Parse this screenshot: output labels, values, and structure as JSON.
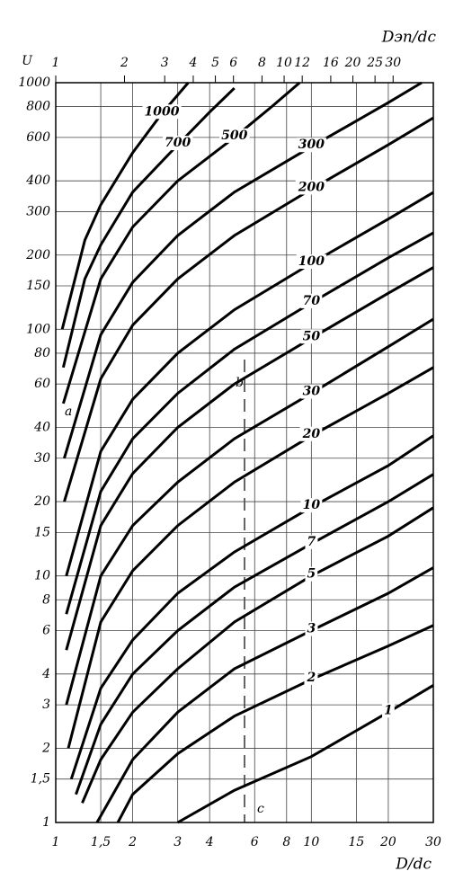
{
  "chart_data": {
    "type": "line",
    "x_label": "D/dc",
    "y_label": "U",
    "x2_label": "Dэп/dc",
    "xscale": "log",
    "yscale": "log",
    "grid": true,
    "color": "#000000",
    "xlim": [
      1,
      30
    ],
    "ylim": [
      1,
      1000
    ],
    "x2lim": [
      1,
      45
    ],
    "xticks": [
      1,
      {
        "value": 1.5,
        "label": "1,5"
      },
      2,
      3,
      4,
      6,
      8,
      10,
      15,
      20,
      30
    ],
    "x2ticks": [
      1,
      2,
      3,
      4,
      5,
      6,
      8,
      10,
      12,
      16,
      20,
      25,
      30
    ],
    "yticks": [
      1,
      {
        "value": 1.5,
        "label": "1,5"
      },
      2,
      3,
      4,
      6,
      8,
      10,
      15,
      20,
      30,
      40,
      60,
      80,
      100,
      150,
      200,
      300,
      400,
      600,
      800,
      1000
    ],
    "annotations": [
      "a",
      "b",
      "c"
    ],
    "series": [
      {
        "name": "1",
        "color": "#000000",
        "x": [
          3,
          5,
          10,
          20,
          30
        ],
        "values": [
          1,
          1.35,
          1.85,
          2.8,
          3.6
        ]
      },
      {
        "name": "2",
        "color": "#000000",
        "x": [
          1.75,
          2,
          3,
          5,
          10,
          20,
          30
        ],
        "values": [
          1,
          1.3,
          1.9,
          2.7,
          3.8,
          5.2,
          6.3
        ]
      },
      {
        "name": "3",
        "color": "#000000",
        "x": [
          1.45,
          2,
          3,
          5,
          10,
          20,
          30
        ],
        "values": [
          1,
          1.8,
          2.8,
          4.2,
          6,
          8.5,
          10.8
        ]
      },
      {
        "name": "5",
        "color": "#000000",
        "x": [
          1.27,
          1.5,
          2,
          3,
          5,
          10,
          20,
          30
        ],
        "values": [
          1.2,
          1.8,
          2.8,
          4.2,
          6.5,
          10,
          14.5,
          18.9
        ]
      },
      {
        "name": "7",
        "color": "#000000",
        "x": [
          1.2,
          1.5,
          2,
          3,
          5,
          10,
          20,
          30
        ],
        "values": [
          1.3,
          2.5,
          4,
          6,
          9,
          13.5,
          20,
          25.8
        ]
      },
      {
        "name": "10",
        "color": "#000000",
        "x": [
          1.15,
          1.5,
          2,
          3,
          5,
          10,
          20,
          30
        ],
        "values": [
          1.5,
          3.5,
          5.5,
          8.5,
          12.5,
          19,
          28,
          37
        ]
      },
      {
        "name": "20",
        "color": "#000000",
        "x": [
          1.12,
          1.5,
          2,
          3,
          5,
          10,
          20,
          30
        ],
        "values": [
          2,
          6.5,
          10.5,
          16,
          24,
          37,
          55,
          70
        ]
      },
      {
        "name": "30",
        "color": "#000000",
        "x": [
          1.1,
          1.5,
          2,
          3,
          5,
          10,
          20,
          30
        ],
        "values": [
          3,
          10,
          16,
          24,
          36,
          55,
          85,
          110
        ]
      },
      {
        "name": "50",
        "color": "#000000",
        "x": [
          1.1,
          1.5,
          2,
          3,
          5,
          10,
          20,
          30
        ],
        "values": [
          5,
          16,
          26,
          40,
          60,
          92,
          140,
          178
        ]
      },
      {
        "name": "70",
        "color": "#000000",
        "x": [
          1.1,
          1.5,
          2,
          3,
          5,
          10,
          20,
          30
        ],
        "values": [
          7,
          22,
          36,
          55,
          83,
          128,
          195,
          246
        ]
      },
      {
        "name": "100",
        "color": "#000000",
        "x": [
          1.1,
          1.5,
          2,
          3,
          5,
          10,
          20,
          30
        ],
        "values": [
          10,
          32,
          52,
          80,
          120,
          185,
          280,
          359
        ]
      },
      {
        "name": "200",
        "color": "#000000",
        "x": [
          1.08,
          1.5,
          2,
          3,
          5,
          10,
          20,
          30
        ],
        "values": [
          20,
          63,
          104,
          160,
          240,
          370,
          560,
          720
        ]
      },
      {
        "name": "300",
        "color": "#000000",
        "x": [
          1.08,
          1.5,
          2,
          3,
          5,
          10,
          20,
          27
        ],
        "values": [
          30,
          95,
          155,
          240,
          360,
          550,
          830,
          1000
        ]
      },
      {
        "name": "500",
        "color": "#000000",
        "x": [
          1.07,
          1.5,
          2,
          3,
          5,
          7,
          9
        ],
        "values": [
          50,
          160,
          260,
          400,
          600,
          800,
          1000
        ]
      },
      {
        "name": "700",
        "color": "#000000",
        "x": [
          1.07,
          1.3,
          1.5,
          2,
          3,
          4,
          5
        ],
        "values": [
          70,
          160,
          220,
          360,
          560,
          760,
          950
        ]
      },
      {
        "name": "1000",
        "color": "#000000",
        "x": [
          1.06,
          1.3,
          1.5,
          2,
          2.6,
          3.3
        ],
        "values": [
          100,
          230,
          320,
          520,
          750,
          1000
        ]
      }
    ]
  }
}
